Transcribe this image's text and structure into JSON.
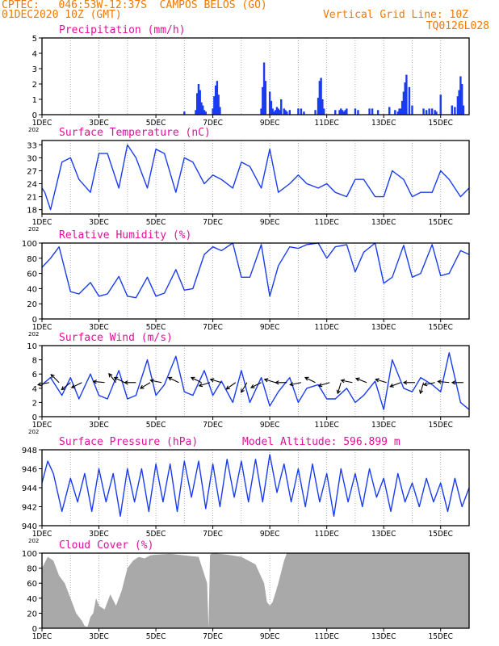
{
  "header": {
    "line1": "CPTEC:   046:53W-12:37S  CAMPOS BELOS (GO)",
    "line2": "01DEC2020 10Z (GMT)",
    "grid_note": "Vertical Grid Line: 10Z",
    "code": "TQ0126L028",
    "model_altitude": "Model Altitude: 596.899 m"
  },
  "colors": {
    "header": "#f07800",
    "title": "#e0109a",
    "series": "#1a3cf0",
    "cloud": "#a9a9a9"
  },
  "x_axis": {
    "ticks": [
      "1DEC",
      "3DEC",
      "5DEC",
      "7DEC",
      "9DEC",
      "11DEC",
      "13DEC",
      "15DEC"
    ],
    "tick_days": [
      0,
      2,
      4,
      6,
      8,
      10,
      12,
      14
    ],
    "range_days": [
      0,
      15
    ],
    "year_stub": "202"
  },
  "chart_data": [
    {
      "type": "bar",
      "title": "Precipitation (mm/h)",
      "ylim": [
        0,
        5
      ],
      "yticks": [
        "0",
        "1",
        "2",
        "3",
        "4",
        "5"
      ],
      "x": [
        5.0,
        5.4,
        5.45,
        5.5,
        5.55,
        5.6,
        5.65,
        5.7,
        5.75,
        6.0,
        6.05,
        6.1,
        6.15,
        6.2,
        6.25,
        7.7,
        7.75,
        7.8,
        7.85,
        8.0,
        8.05,
        8.1,
        8.15,
        8.2,
        8.25,
        8.3,
        8.35,
        8.4,
        8.5,
        8.55,
        8.6,
        8.7,
        9.0,
        9.1,
        9.2,
        9.6,
        9.7,
        9.75,
        9.8,
        9.85,
        9.9,
        10.3,
        10.45,
        10.5,
        10.55,
        10.6,
        10.65,
        10.7,
        11.0,
        11.1,
        11.5,
        11.6,
        11.8,
        12.2,
        12.4,
        12.5,
        12.55,
        12.6,
        12.65,
        12.7,
        12.75,
        12.8,
        12.9,
        13.0,
        13.4,
        13.5,
        13.6,
        13.7,
        13.8,
        13.85,
        14.0,
        14.4,
        14.5,
        14.6,
        14.65,
        14.7,
        14.75,
        14.8
      ],
      "values": [
        0.2,
        0.3,
        1.4,
        2.0,
        1.6,
        0.8,
        0.6,
        0.3,
        0.2,
        0.4,
        1.2,
        1.9,
        2.2,
        1.3,
        0.5,
        0.4,
        1.8,
        3.4,
        2.2,
        1.5,
        0.9,
        0.4,
        0.2,
        0.3,
        0.5,
        0.4,
        0.3,
        1.0,
        0.4,
        0.3,
        0.2,
        0.3,
        0.4,
        0.4,
        0.2,
        0.3,
        1.1,
        2.2,
        2.4,
        1.0,
        0.4,
        0.3,
        0.3,
        0.4,
        0.3,
        0.2,
        0.3,
        0.4,
        0.4,
        0.3,
        0.4,
        0.4,
        0.3,
        0.5,
        0.3,
        0.2,
        0.4,
        0.4,
        0.9,
        1.5,
        2.1,
        2.6,
        1.8,
        0.6,
        0.4,
        0.3,
        0.4,
        0.4,
        0.3,
        0.2,
        1.3,
        0.6,
        0.5,
        1.2,
        1.6,
        2.5,
        2.0,
        0.6
      ]
    },
    {
      "type": "line",
      "title": "Surface Temperature (nC)",
      "ylim": [
        17,
        34
      ],
      "yticks": [
        "18",
        "21",
        "24",
        "27",
        "30",
        "33"
      ],
      "x": [
        0,
        0.1,
        0.3,
        0.7,
        1.0,
        1.3,
        1.7,
        2.0,
        2.3,
        2.7,
        3.0,
        3.3,
        3.7,
        4.0,
        4.3,
        4.7,
        5.0,
        5.3,
        5.7,
        6.0,
        6.3,
        6.7,
        7.0,
        7.3,
        7.7,
        8.0,
        8.3,
        8.7,
        9.0,
        9.3,
        9.7,
        10.0,
        10.3,
        10.7,
        11.0,
        11.3,
        11.7,
        12.0,
        12.3,
        12.7,
        13.0,
        13.3,
        13.7,
        14.0,
        14.3,
        14.7,
        15.0
      ],
      "values": [
        23,
        22,
        18,
        29,
        30,
        25,
        22,
        31,
        31,
        23,
        33,
        30,
        23,
        32,
        31,
        22,
        30,
        29,
        24,
        26,
        25,
        23,
        29,
        28,
        23,
        32,
        22,
        24,
        26,
        24,
        23,
        24,
        22,
        21,
        25,
        25,
        21,
        21,
        27,
        25,
        21,
        22,
        22,
        27,
        25,
        21,
        23
      ]
    },
    {
      "type": "line",
      "title": "Relative Humidity (%)",
      "ylim": [
        0,
        100
      ],
      "yticks": [
        "0",
        "20",
        "40",
        "60",
        "80",
        "100"
      ],
      "x": [
        0,
        0.3,
        0.6,
        1.0,
        1.3,
        1.7,
        2.0,
        2.3,
        2.7,
        3.0,
        3.3,
        3.7,
        4.0,
        4.3,
        4.7,
        5.0,
        5.3,
        5.7,
        6.0,
        6.3,
        6.7,
        7.0,
        7.3,
        7.7,
        8.0,
        8.3,
        8.7,
        9.0,
        9.3,
        9.7,
        10.0,
        10.3,
        10.7,
        11.0,
        11.3,
        11.7,
        12.0,
        12.3,
        12.7,
        13.0,
        13.3,
        13.7,
        14.0,
        14.3,
        14.7,
        15.0
      ],
      "values": [
        68,
        80,
        95,
        36,
        33,
        48,
        30,
        33,
        56,
        30,
        28,
        55,
        30,
        34,
        65,
        38,
        40,
        85,
        95,
        90,
        100,
        55,
        55,
        98,
        30,
        70,
        95,
        93,
        98,
        100,
        80,
        95,
        98,
        62,
        88,
        100,
        47,
        55,
        97,
        55,
        60,
        98,
        57,
        60,
        90,
        85
      ]
    },
    {
      "type": "line",
      "title": "Surface Wind (m/s)",
      "ylim": [
        0,
        10
      ],
      "yticks": [
        "0",
        "2",
        "4",
        "6",
        "8",
        "10"
      ],
      "x": [
        0,
        0.3,
        0.7,
        1.0,
        1.3,
        1.7,
        2.0,
        2.3,
        2.7,
        3.0,
        3.3,
        3.7,
        4.0,
        4.3,
        4.7,
        5.0,
        5.3,
        5.7,
        6.0,
        6.3,
        6.7,
        7.0,
        7.3,
        7.7,
        8.0,
        8.3,
        8.7,
        9.0,
        9.3,
        9.7,
        10.0,
        10.3,
        10.7,
        11.0,
        11.3,
        11.7,
        12.0,
        12.3,
        12.7,
        13.0,
        13.3,
        13.7,
        14.0,
        14.3,
        14.7,
        15.0
      ],
      "values": [
        4.5,
        5.5,
        3.0,
        5.5,
        2.5,
        6.0,
        3.0,
        2.5,
        6.5,
        2.5,
        3.0,
        8.0,
        3.0,
        4.5,
        8.5,
        3.5,
        3.0,
        6.5,
        3.0,
        5.0,
        2.0,
        6.5,
        2.0,
        5.5,
        1.5,
        3.5,
        5.5,
        2.0,
        4.0,
        4.5,
        2.5,
        2.5,
        4.0,
        2.0,
        3.0,
        5.0,
        1.0,
        8.0,
        4.0,
        3.5,
        5.5,
        4.5,
        3.5,
        9.0,
        2.0,
        1.0
      ]
    },
    {
      "type": "line",
      "title": "Surface Pressure (hPa)",
      "ylim": [
        940,
        948
      ],
      "yticks": [
        "940",
        "942",
        "944",
        "946",
        "948"
      ],
      "x": [
        0,
        0.2,
        0.4,
        0.7,
        1.0,
        1.25,
        1.5,
        1.75,
        2.0,
        2.25,
        2.5,
        2.75,
        3.0,
        3.25,
        3.5,
        3.75,
        4.0,
        4.25,
        4.5,
        4.75,
        5.0,
        5.25,
        5.5,
        5.75,
        6.0,
        6.25,
        6.5,
        6.75,
        7.0,
        7.25,
        7.5,
        7.75,
        8.0,
        8.25,
        8.5,
        8.75,
        9.0,
        9.25,
        9.5,
        9.75,
        10.0,
        10.25,
        10.5,
        10.75,
        11.0,
        11.25,
        11.5,
        11.75,
        12.0,
        12.25,
        12.5,
        12.75,
        13.0,
        13.25,
        13.5,
        13.75,
        14.0,
        14.25,
        14.5,
        14.75,
        15.0
      ],
      "values": [
        944.5,
        946.8,
        945.5,
        941.5,
        945.0,
        942.5,
        945.5,
        941.5,
        946.0,
        942.5,
        945.5,
        941.0,
        946.0,
        942.5,
        946.0,
        941.5,
        946.5,
        942.5,
        946.5,
        941.5,
        946.8,
        943.0,
        946.8,
        941.8,
        946.5,
        942.0,
        947.0,
        943.0,
        946.8,
        942.5,
        947.0,
        942.5,
        947.5,
        943.5,
        946.5,
        942.5,
        946.0,
        942.0,
        946.5,
        942.5,
        945.5,
        941.0,
        946.0,
        942.5,
        945.5,
        942.0,
        946.0,
        943.0,
        945.0,
        941.5,
        945.5,
        942.5,
        944.5,
        942.0,
        945.0,
        942.5,
        944.5,
        941.5,
        945.0,
        942.0,
        944.0
      ]
    },
    {
      "type": "area",
      "title": "Cloud Cover (%)",
      "ylim": [
        0,
        100
      ],
      "yticks": [
        "0",
        "20",
        "40",
        "60",
        "80",
        "100"
      ],
      "x": [
        0,
        0.2,
        0.4,
        0.6,
        0.8,
        1.0,
        1.2,
        1.4,
        1.5,
        1.6,
        1.7,
        1.8,
        1.9,
        2.0,
        2.2,
        2.4,
        2.6,
        2.8,
        3.0,
        3.2,
        3.4,
        3.6,
        3.8,
        4.0,
        4.5,
        5.0,
        5.5,
        5.8,
        5.85,
        5.9,
        6.0,
        6.5,
        7.0,
        7.5,
        7.8,
        7.9,
        8.0,
        8.1,
        8.3,
        8.5,
        8.6,
        9.0,
        10.0,
        11.0,
        12.0,
        13.0,
        14.0,
        15.0
      ],
      "values": [
        80,
        95,
        90,
        70,
        60,
        40,
        20,
        10,
        3,
        2,
        15,
        20,
        40,
        30,
        25,
        45,
        30,
        50,
        80,
        90,
        95,
        93,
        97,
        98,
        99,
        97,
        95,
        60,
        0,
        98,
        100,
        98,
        95,
        85,
        60,
        35,
        30,
        35,
        60,
        90,
        100,
        100,
        100,
        100,
        100,
        100,
        100,
        100
      ]
    }
  ],
  "wind_arrows": [
    {
      "day": 0.25,
      "u": -1,
      "v": -0.2
    },
    {
      "day": 0.6,
      "u": -1,
      "v": 1
    },
    {
      "day": 1.0,
      "u": -1,
      "v": -0.8
    },
    {
      "day": 1.4,
      "u": -1,
      "v": -0.5
    },
    {
      "day": 2.2,
      "u": -1,
      "v": 0.1
    },
    {
      "day": 2.6,
      "u": -0.8,
      "v": 1
    },
    {
      "day": 2.9,
      "u": -1,
      "v": 0.5
    },
    {
      "day": 3.3,
      "u": -1,
      "v": 0
    },
    {
      "day": 3.8,
      "u": -1,
      "v": -0.6
    },
    {
      "day": 4.2,
      "u": -1,
      "v": 0.2
    },
    {
      "day": 4.8,
      "u": -1,
      "v": 0.5
    },
    {
      "day": 5.6,
      "u": -1,
      "v": 0.5
    },
    {
      "day": 5.9,
      "u": -1,
      "v": -0.3
    },
    {
      "day": 6.3,
      "u": -1,
      "v": 0.3
    },
    {
      "day": 6.8,
      "u": -1,
      "v": -0.7
    },
    {
      "day": 7.2,
      "u": -0.6,
      "v": -1
    },
    {
      "day": 7.7,
      "u": -1,
      "v": -0.5
    },
    {
      "day": 8.2,
      "u": -1,
      "v": 0.3
    },
    {
      "day": 8.6,
      "u": -1,
      "v": 0
    },
    {
      "day": 9.1,
      "u": -1,
      "v": -0.2
    },
    {
      "day": 9.6,
      "u": -1,
      "v": 0.5
    },
    {
      "day": 10.1,
      "u": -1,
      "v": -0.3
    },
    {
      "day": 10.5,
      "u": -0.3,
      "v": -1
    },
    {
      "day": 10.9,
      "u": -1,
      "v": 0.2
    },
    {
      "day": 11.4,
      "u": -1,
      "v": 0.4
    },
    {
      "day": 12.1,
      "u": -1,
      "v": 0.3
    },
    {
      "day": 12.6,
      "u": -0.8,
      "v": -0.3
    },
    {
      "day": 13.1,
      "u": -1,
      "v": 0
    },
    {
      "day": 13.4,
      "u": -0.3,
      "v": -1
    },
    {
      "day": 13.8,
      "u": -1,
      "v": -0.2
    },
    {
      "day": 14.3,
      "u": -1,
      "v": 0.1
    },
    {
      "day": 14.8,
      "u": -1,
      "v": 0
    }
  ]
}
